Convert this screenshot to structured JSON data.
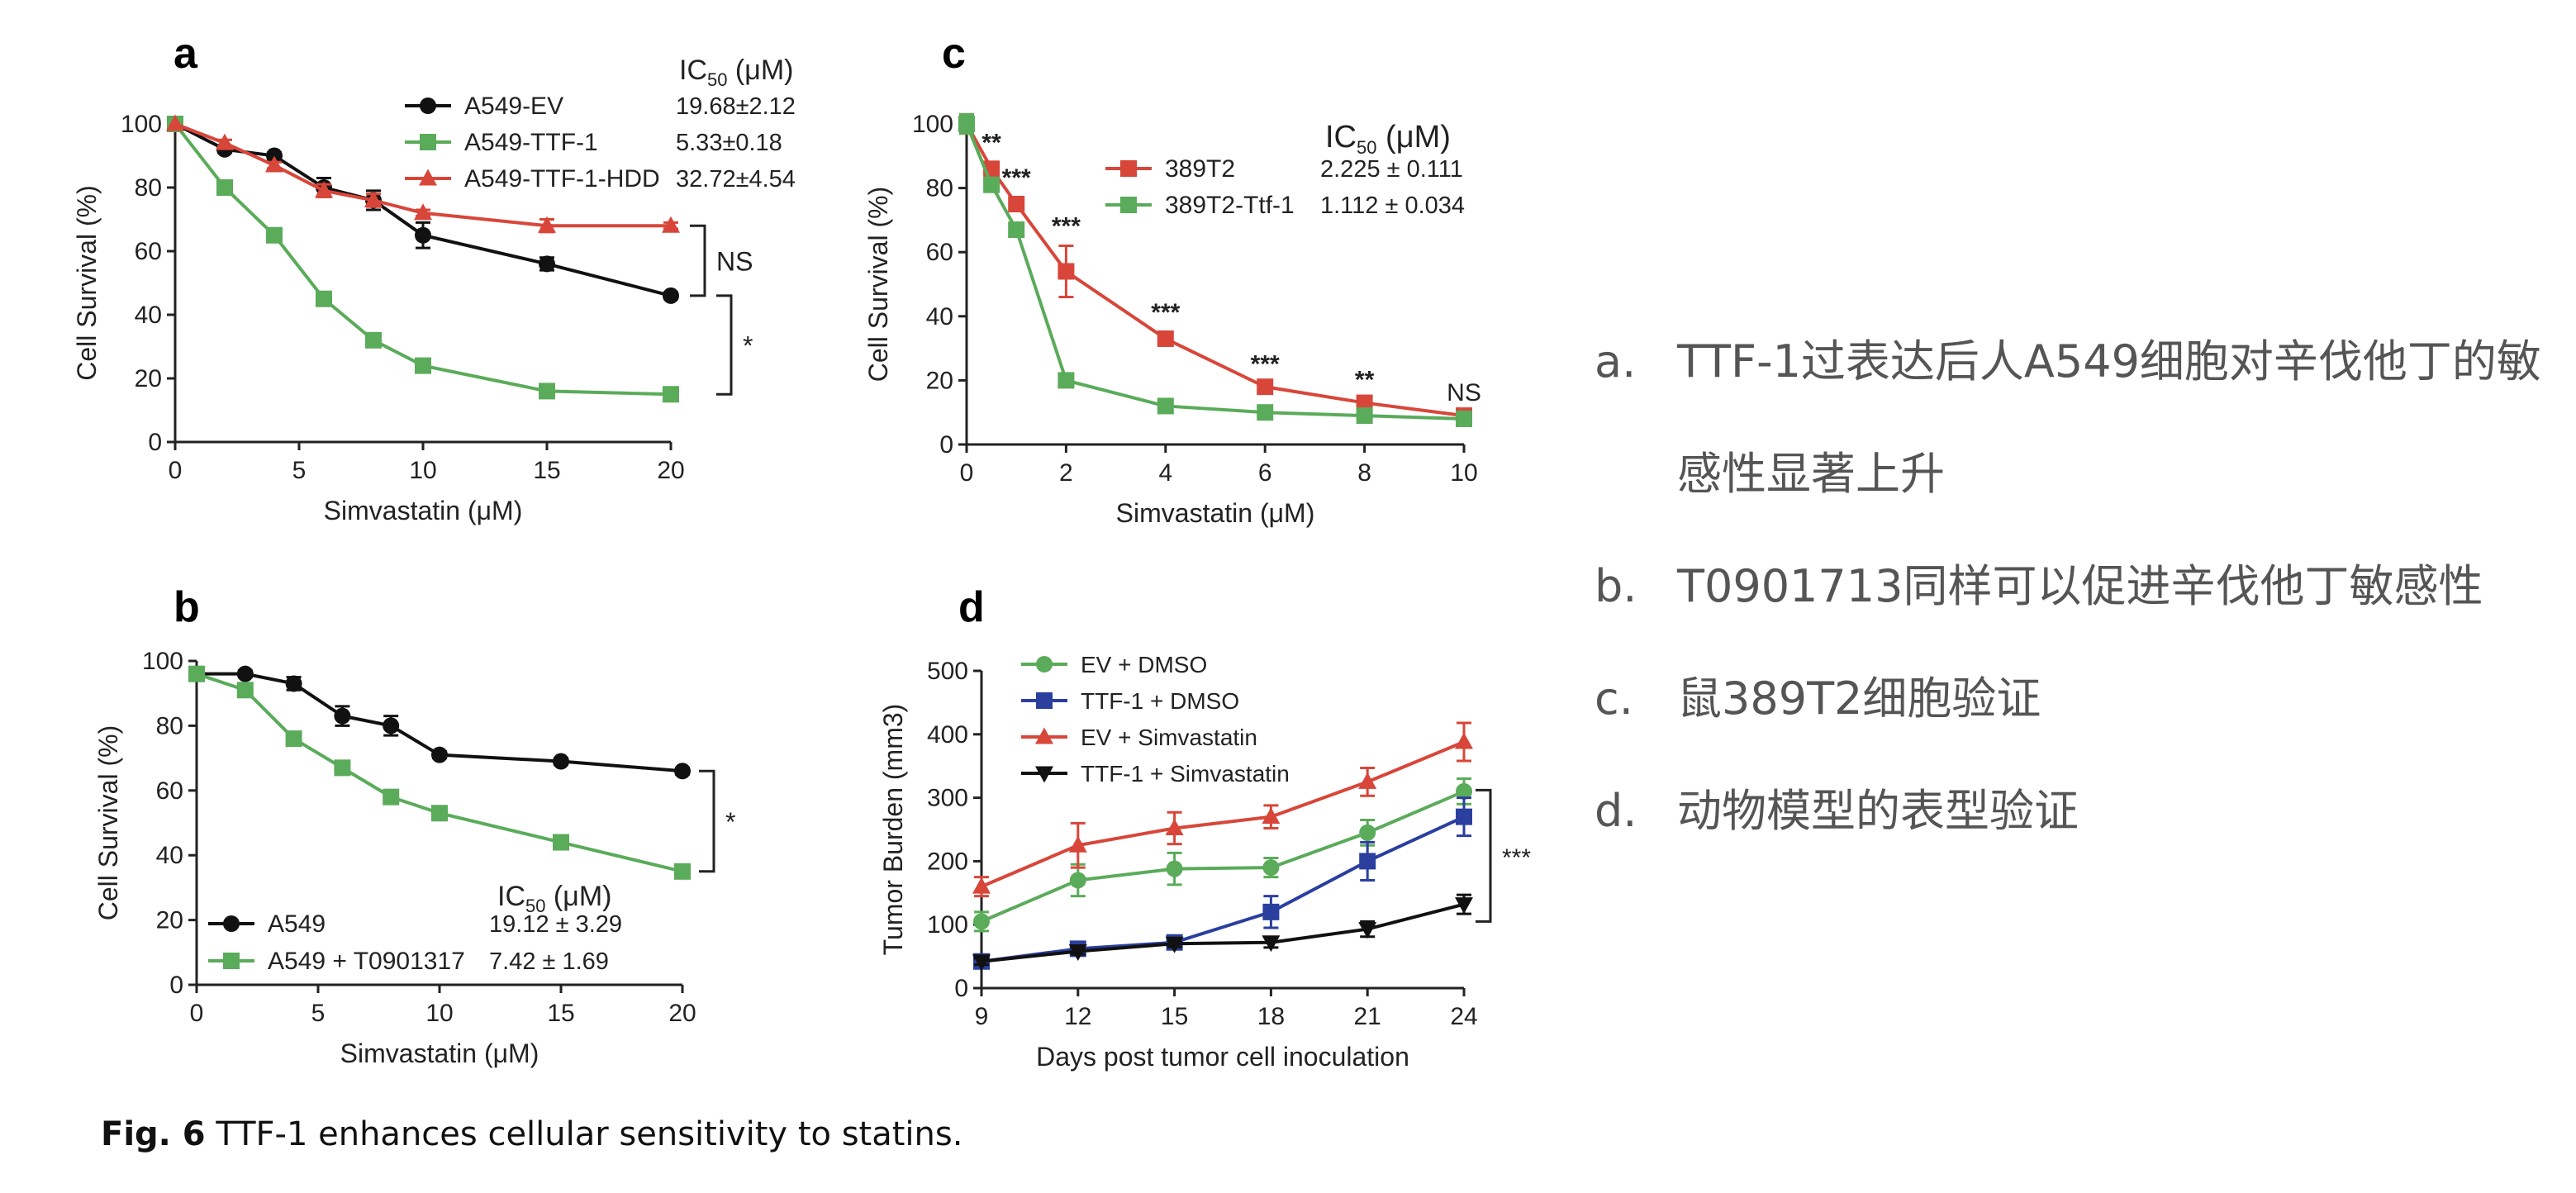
{
  "notes": [
    {
      "letter": "a.",
      "text": "TTF-1过表达后人A549细胞对辛伐他丁的敏感性显著上升"
    },
    {
      "letter": "b.",
      "text": "T0901713同样可以促进辛伐他丁敏感性"
    },
    {
      "letter": "c.",
      "text": "鼠389T2细胞验证"
    },
    {
      "letter": "d.",
      "text": "动物模型的表型验证"
    }
  ],
  "caption": {
    "label": "Fig. 6",
    "text": "TTF-1 enhances cellular sensitivity to statins."
  },
  "chart_data": [
    {
      "panel": "a",
      "type": "line",
      "xlabel": "Simvastatin (μM)",
      "ylabel": "Cell Survival (%)",
      "xlim": [
        0,
        20
      ],
      "ylim": [
        0,
        100
      ],
      "xticks": [
        0,
        5,
        10,
        15,
        20
      ],
      "yticks": [
        0,
        20,
        40,
        60,
        80,
        100
      ],
      "ic50_header": "IC50 (μM)",
      "series": [
        {
          "name": "A549-EV",
          "color": "#111111",
          "marker": "circle",
          "ic50": "19.68±2.12",
          "x": [
            0,
            2,
            4,
            6,
            8,
            10,
            15,
            20
          ],
          "values": [
            100,
            92,
            90,
            80,
            76,
            65,
            56,
            46
          ],
          "err": [
            0,
            1,
            1,
            3,
            3,
            4,
            2,
            1
          ]
        },
        {
          "name": "A549-TTF-1",
          "color": "#5aab5a",
          "marker": "square",
          "ic50": "5.33±0.18",
          "x": [
            0,
            2,
            4,
            6,
            8,
            10,
            15,
            20
          ],
          "values": [
            100,
            80,
            65,
            45,
            32,
            24,
            16,
            15
          ],
          "err": [
            0,
            1,
            1,
            1,
            1,
            1,
            1,
            1
          ]
        },
        {
          "name": "A549-TTF-1-HDD",
          "color": "#d8463a",
          "marker": "triangle",
          "ic50": "32.72±4.54",
          "x": [
            0,
            2,
            4,
            6,
            8,
            10,
            15,
            20
          ],
          "values": [
            100,
            94,
            87,
            79,
            76,
            72,
            68,
            68
          ],
          "err": [
            0,
            1,
            1,
            2,
            2,
            1,
            2,
            1
          ]
        }
      ],
      "annotations": [
        {
          "text": "NS"
        },
        {
          "text": "*"
        }
      ]
    },
    {
      "panel": "b",
      "type": "line",
      "xlabel": "Simvastatin (μM)",
      "ylabel": "Cell Survival (%)",
      "xlim": [
        0,
        20
      ],
      "ylim": [
        0,
        100
      ],
      "xticks": [
        0,
        5,
        10,
        15,
        20
      ],
      "yticks": [
        0,
        20,
        40,
        60,
        80,
        100
      ],
      "ic50_header": "IC50 (μM)",
      "series": [
        {
          "name": "A549",
          "color": "#111111",
          "marker": "circle",
          "ic50": "19.12 ± 3.29",
          "x": [
            0,
            2,
            4,
            6,
            8,
            10,
            15,
            20
          ],
          "values": [
            96,
            96,
            93,
            83,
            80,
            71,
            69,
            66
          ],
          "err": [
            0,
            1,
            2,
            3,
            3,
            1,
            1,
            1
          ]
        },
        {
          "name": "A549 + T0901317",
          "color": "#5aab5a",
          "marker": "square",
          "ic50": "7.42 ± 1.69",
          "x": [
            0,
            2,
            4,
            6,
            8,
            10,
            15,
            20
          ],
          "values": [
            96,
            91,
            76,
            67,
            58,
            53,
            44,
            35
          ],
          "err": [
            0,
            1,
            1,
            1,
            1,
            1,
            1,
            1
          ]
        }
      ],
      "annotations": [
        {
          "text": "*"
        }
      ]
    },
    {
      "panel": "c",
      "type": "line",
      "xlabel": "Simvastatin (μM)",
      "ylabel": "Cell Survival (%)",
      "xlim": [
        0,
        10
      ],
      "ylim": [
        0,
        100
      ],
      "xticks": [
        0,
        2,
        4,
        6,
        8,
        10
      ],
      "yticks": [
        0,
        20,
        40,
        60,
        80,
        100
      ],
      "ic50_header": "IC50 (μM)",
      "series": [
        {
          "name": "389T2",
          "color": "#d8463a",
          "marker": "square",
          "ic50": "2.225 ± 0.111",
          "x": [
            0,
            0.5,
            1,
            2,
            4,
            6,
            8,
            10
          ],
          "values": [
            100,
            86,
            75,
            54,
            33,
            18,
            13,
            9
          ],
          "err": [
            3,
            2,
            2,
            8,
            2,
            1,
            1,
            1
          ]
        },
        {
          "name": "389T2-Ttf-1",
          "color": "#5aab5a",
          "marker": "square",
          "ic50": "1.112 ± 0.034",
          "x": [
            0,
            0.5,
            1,
            2,
            4,
            6,
            8,
            10
          ],
          "values": [
            100,
            81,
            67,
            20,
            12,
            10,
            9,
            8
          ],
          "err": [
            3,
            2,
            2,
            1,
            1,
            1,
            1,
            1
          ]
        }
      ],
      "significance": [
        {
          "x": 0.5,
          "text": "**"
        },
        {
          "x": 1,
          "text": "***"
        },
        {
          "x": 2,
          "text": "***"
        },
        {
          "x": 4,
          "text": "***"
        },
        {
          "x": 6,
          "text": "***"
        },
        {
          "x": 8,
          "text": "**"
        },
        {
          "x": 10,
          "text": "NS"
        }
      ]
    },
    {
      "panel": "d",
      "type": "line",
      "xlabel": "Days post tumor cell inoculation",
      "ylabel": "Tumor Burden (mm3)",
      "xlim": [
        9,
        24
      ],
      "ylim": [
        0,
        500
      ],
      "xticks": [
        9,
        12,
        15,
        18,
        21,
        24
      ],
      "yticks": [
        0,
        100,
        200,
        300,
        400,
        500
      ],
      "series": [
        {
          "name": "EV + DMSO",
          "color": "#5aab5a",
          "marker": "circle",
          "x": [
            9,
            12,
            15,
            18,
            21,
            24
          ],
          "values": [
            105,
            170,
            188,
            190,
            245,
            310
          ],
          "err": [
            15,
            25,
            25,
            15,
            20,
            20
          ]
        },
        {
          "name": "TTF-1 + DMSO",
          "color": "#2a3f9e",
          "marker": "square",
          "x": [
            9,
            12,
            15,
            18,
            21,
            24
          ],
          "values": [
            42,
            62,
            72,
            120,
            200,
            270
          ],
          "err": [
            5,
            5,
            8,
            25,
            30,
            30
          ]
        },
        {
          "name": "EV + Simvastatin",
          "color": "#d8463a",
          "marker": "triangle",
          "x": [
            9,
            12,
            15,
            18,
            21,
            24
          ],
          "values": [
            160,
            225,
            252,
            270,
            325,
            388
          ],
          "err": [
            15,
            35,
            25,
            18,
            22,
            30
          ]
        },
        {
          "name": "TTF-1 + Simvastatin",
          "color": "#111111",
          "marker": "tridown",
          "x": [
            9,
            12,
            15,
            18,
            21,
            24
          ],
          "values": [
            42,
            58,
            70,
            72,
            93,
            132
          ],
          "err": [
            5,
            5,
            5,
            8,
            12,
            15
          ]
        }
      ],
      "annotations": [
        {
          "text": "***"
        }
      ]
    }
  ]
}
